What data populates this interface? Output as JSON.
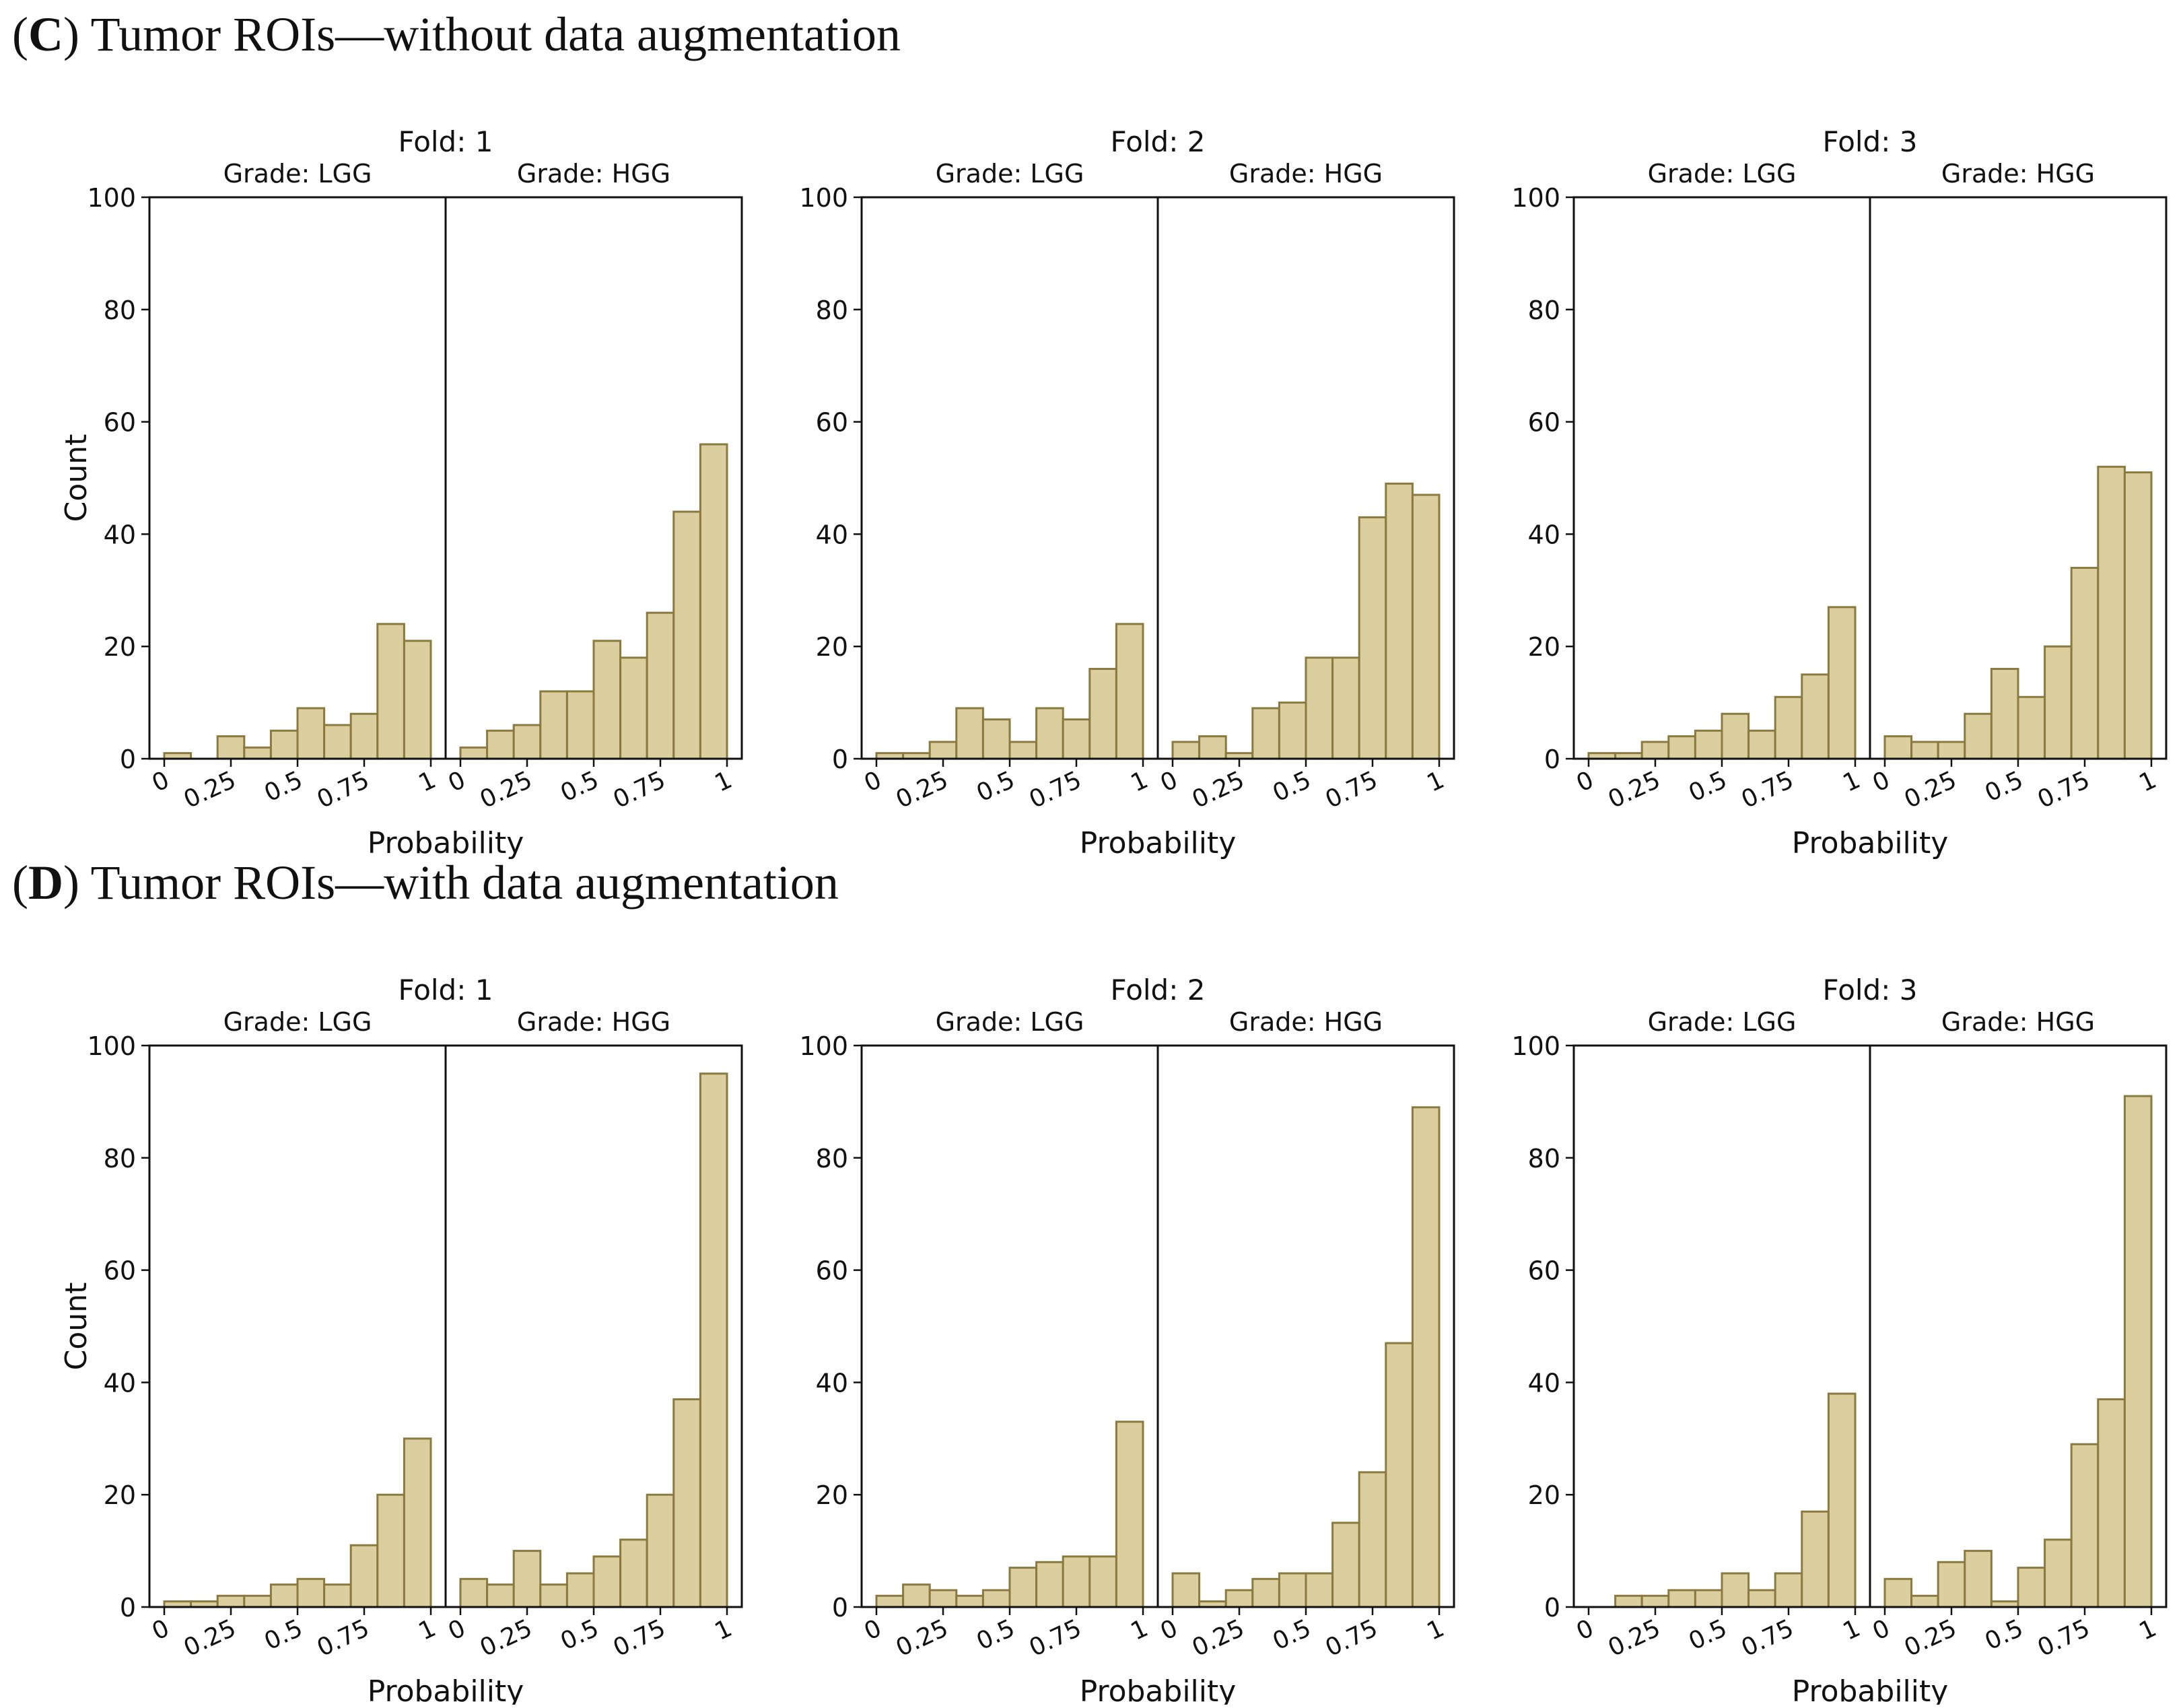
{
  "sections": [
    {
      "letter": "C",
      "title": "Tumor ROIs—without data augmentation"
    },
    {
      "letter": "D",
      "title": "Tumor ROIs—with data augmentation"
    }
  ],
  "colors": {
    "bar_fill": "#dccf9f",
    "bar_edge": "#8a7a40",
    "axis": "#111111"
  },
  "chart_data": [
    {
      "type": "bar",
      "section": "C",
      "title": "Fold: 1",
      "panels": [
        {
          "title": "Grade: LGG",
          "values": [
            1,
            0,
            4,
            2,
            5,
            9,
            6,
            8,
            24,
            21
          ]
        },
        {
          "title": "Grade: HGG",
          "values": [
            2,
            5,
            6,
            12,
            12,
            21,
            18,
            26,
            44,
            56
          ]
        }
      ],
      "xlabel": "Probability",
      "ylabel": "Count",
      "ylim": [
        0,
        100
      ],
      "yticks": [
        "0",
        "20",
        "40",
        "60",
        "80",
        "100"
      ],
      "xticks": [
        "0",
        "0.25",
        "0.5",
        "0.75",
        "1"
      ]
    },
    {
      "type": "bar",
      "section": "C",
      "title": "Fold: 2",
      "panels": [
        {
          "title": "Grade: LGG",
          "values": [
            1,
            1,
            3,
            9,
            7,
            3,
            9,
            7,
            16,
            24
          ]
        },
        {
          "title": "Grade: HGG",
          "values": [
            3,
            4,
            1,
            9,
            10,
            18,
            18,
            43,
            49,
            47
          ]
        }
      ],
      "xlabel": "Probability",
      "ylabel": "",
      "ylim": [
        0,
        100
      ],
      "yticks": [
        "0",
        "20",
        "40",
        "60",
        "80",
        "100"
      ],
      "xticks": [
        "0",
        "0.25",
        "0.5",
        "0.75",
        "1"
      ]
    },
    {
      "type": "bar",
      "section": "C",
      "title": "Fold: 3",
      "panels": [
        {
          "title": "Grade: LGG",
          "values": [
            1,
            1,
            3,
            4,
            5,
            8,
            5,
            11,
            15,
            27
          ]
        },
        {
          "title": "Grade: HGG",
          "values": [
            4,
            3,
            3,
            8,
            16,
            11,
            20,
            34,
            52,
            51
          ]
        }
      ],
      "xlabel": "Probability",
      "ylabel": "",
      "ylim": [
        0,
        100
      ],
      "yticks": [
        "0",
        "20",
        "40",
        "60",
        "80",
        "100"
      ],
      "xticks": [
        "0",
        "0.25",
        "0.5",
        "0.75",
        "1"
      ]
    },
    {
      "type": "bar",
      "section": "D",
      "title": "Fold: 1",
      "panels": [
        {
          "title": "Grade: LGG",
          "values": [
            1,
            1,
            2,
            2,
            4,
            5,
            4,
            11,
            20,
            30
          ]
        },
        {
          "title": "Grade: HGG",
          "values": [
            5,
            4,
            10,
            4,
            6,
            9,
            12,
            20,
            37,
            95
          ]
        }
      ],
      "xlabel": "Probability",
      "ylabel": "Count",
      "ylim": [
        0,
        100
      ],
      "yticks": [
        "0",
        "20",
        "40",
        "60",
        "80",
        "100"
      ],
      "xticks": [
        "0",
        "0.25",
        "0.5",
        "0.75",
        "1"
      ]
    },
    {
      "type": "bar",
      "section": "D",
      "title": "Fold: 2",
      "panels": [
        {
          "title": "Grade: LGG",
          "values": [
            2,
            4,
            3,
            2,
            3,
            7,
            8,
            9,
            9,
            33
          ]
        },
        {
          "title": "Grade: HGG",
          "values": [
            6,
            1,
            3,
            5,
            6,
            6,
            15,
            24,
            47,
            89
          ]
        }
      ],
      "xlabel": "Probability",
      "ylabel": "",
      "ylim": [
        0,
        100
      ],
      "yticks": [
        "0",
        "20",
        "40",
        "60",
        "80",
        "100"
      ],
      "xticks": [
        "0",
        "0.25",
        "0.5",
        "0.75",
        "1"
      ]
    },
    {
      "type": "bar",
      "section": "D",
      "title": "Fold: 3",
      "panels": [
        {
          "title": "Grade: LGG",
          "values": [
            0,
            2,
            2,
            3,
            3,
            6,
            3,
            6,
            17,
            38
          ]
        },
        {
          "title": "Grade: HGG",
          "values": [
            5,
            2,
            8,
            10,
            1,
            7,
            12,
            29,
            37,
            91
          ]
        }
      ],
      "xlabel": "Probability",
      "ylabel": "",
      "ylim": [
        0,
        100
      ],
      "yticks": [
        "0",
        "20",
        "40",
        "60",
        "80",
        "100"
      ],
      "xticks": [
        "0",
        "0.25",
        "0.5",
        "0.75",
        "1"
      ]
    }
  ]
}
